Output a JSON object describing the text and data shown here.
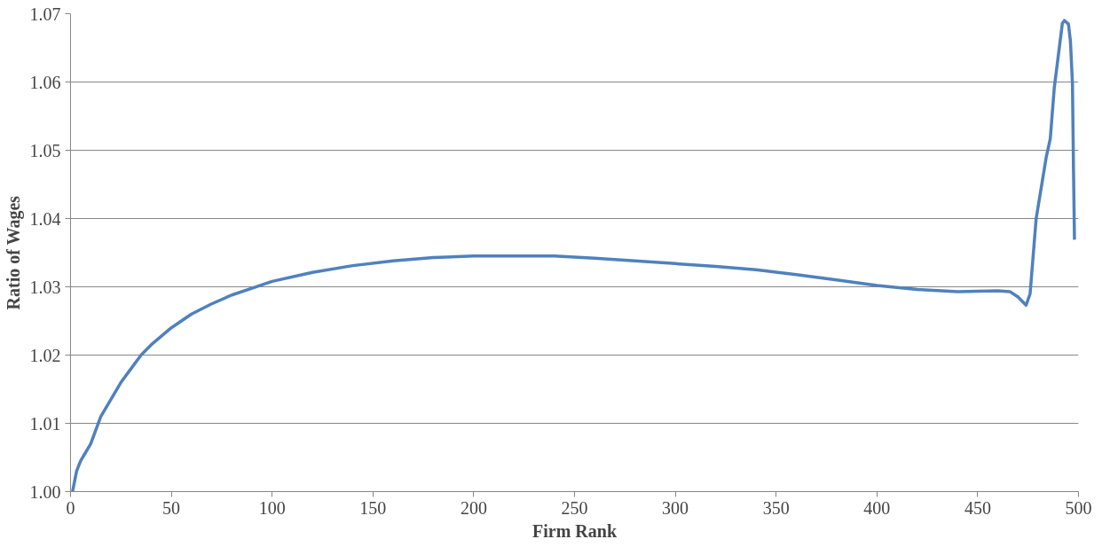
{
  "chart_data": {
    "type": "line",
    "xlabel": "Firm Rank",
    "ylabel": "Ratio of Wages",
    "xlim": [
      0,
      500
    ],
    "xticks": [
      0,
      50,
      100,
      150,
      200,
      250,
      300,
      350,
      400,
      450,
      500
    ],
    "ylim": [
      1.0,
      1.07
    ],
    "yticks": [
      {
        "value": 1.0,
        "label": "1.00"
      },
      {
        "value": 1.01,
        "label": "1.01"
      },
      {
        "value": 1.02,
        "label": "1.02"
      },
      {
        "value": 1.03,
        "label": "1.03"
      },
      {
        "value": 1.04,
        "label": "1.04"
      },
      {
        "value": 1.05,
        "label": "1.05"
      },
      {
        "value": 1.06,
        "label": "1.06"
      },
      {
        "value": 1.07,
        "label": "1.07"
      }
    ],
    "grid": "y",
    "marker": "none",
    "line_style": "solid",
    "series": [
      {
        "color": "#4f81bd",
        "x": [
          1,
          3,
          5,
          10,
          15,
          20,
          25,
          30,
          35,
          40,
          50,
          60,
          70,
          80,
          90,
          100,
          120,
          140,
          160,
          180,
          200,
          240,
          260,
          280,
          300,
          320,
          340,
          360,
          380,
          400,
          420,
          440,
          460,
          466,
          470,
          474,
          476,
          479,
          484,
          486,
          488,
          492,
          493,
          495,
          496,
          497,
          497.5,
          498
        ],
        "values": [
          1.0,
          1.003,
          1.0045,
          1.007,
          1.011,
          1.0135,
          1.016,
          1.018,
          1.02,
          1.0215,
          1.024,
          1.026,
          1.0275,
          1.0288,
          1.0298,
          1.0308,
          1.0321,
          1.0331,
          1.0338,
          1.0343,
          1.0345,
          1.0345,
          1.0342,
          1.0338,
          1.0334,
          1.033,
          1.0325,
          1.0318,
          1.031,
          1.0302,
          1.0296,
          1.0293,
          1.0294,
          1.0293,
          1.0285,
          1.0273,
          1.029,
          1.04,
          1.049,
          1.0517,
          1.0592,
          1.0686,
          1.069,
          1.0685,
          1.066,
          1.0598,
          1.0476,
          1.0369
        ]
      }
    ]
  }
}
